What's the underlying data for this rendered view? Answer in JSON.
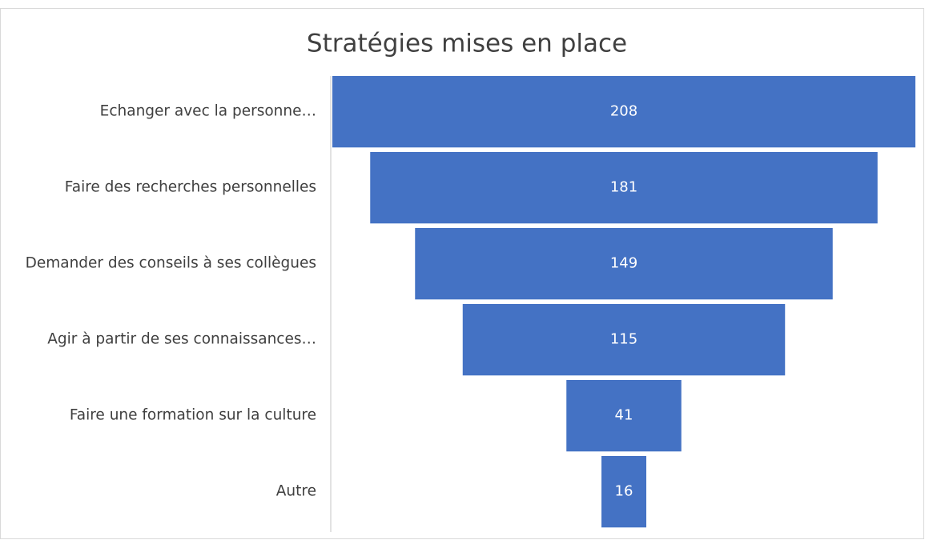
{
  "chart_data": {
    "type": "funnel",
    "title": "Stratégies mises en place",
    "categories": [
      "Echanger avec la personne…",
      "Faire des recherches personnelles",
      "Demander des conseils à ses collègues",
      "Agir à partir de ses connaissances…",
      "Faire une formation sur la culture",
      "Autre"
    ],
    "values": [
      208,
      181,
      149,
      115,
      41,
      16
    ],
    "color": "#4472c4"
  }
}
